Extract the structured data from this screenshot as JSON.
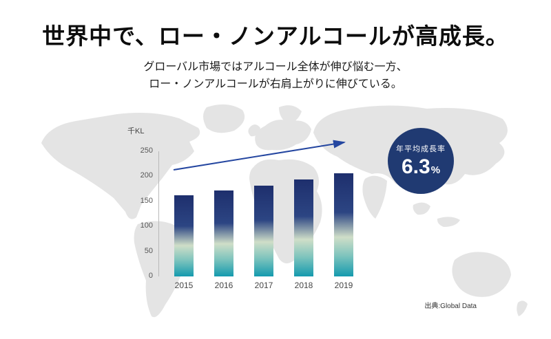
{
  "header": {
    "title": "世界中で、ロー・ノンアルコールが高成長。",
    "subtitle_line1": "グローバル市場ではアルコール全体が伸び悩む一方、",
    "subtitle_line2": "ロー・ノンアルコールが右肩上がりに伸びている。"
  },
  "badge": {
    "label": "年平均成長率",
    "value": "6.3",
    "unit": "%"
  },
  "source": "出典:Global Data",
  "chart_data": {
    "type": "bar",
    "title": "",
    "unit_label": "千KL",
    "categories": [
      "2015",
      "2016",
      "2017",
      "2018",
      "2019"
    ],
    "values": [
      162,
      172,
      181,
      194,
      206
    ],
    "xlabel": "",
    "ylabel": "千KL",
    "ylim": [
      0,
      250
    ],
    "yticks": [
      0,
      50,
      100,
      150,
      200,
      250
    ],
    "grid": false,
    "legend": "none",
    "annotations": [
      "upward trend arrow across bars"
    ],
    "colors": {
      "bar_gradient_top": "#1e2f6d",
      "bar_gradient_mid": "#cfdec8",
      "bar_gradient_bottom": "#149aae",
      "arrow": "#2446a0",
      "badge_background": "#203a72",
      "map": "#e4e4e4"
    }
  }
}
